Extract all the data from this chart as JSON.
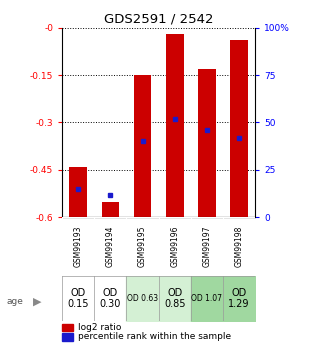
{
  "title": "GDS2591 / 2542",
  "samples": [
    "GSM99193",
    "GSM99194",
    "GSM99195",
    "GSM99196",
    "GSM99197",
    "GSM99198"
  ],
  "log2_ratios": [
    -0.44,
    -0.55,
    -0.15,
    -0.02,
    -0.13,
    -0.04
  ],
  "percentile_ranks_pct": [
    15,
    12,
    40,
    52,
    46,
    42
  ],
  "age_labels": [
    "OD\n0.15",
    "OD\n0.30",
    "OD 0.63",
    "OD\n0.85",
    "OD 1.07",
    "OD\n1.29"
  ],
  "age_fontsize_large": [
    true,
    true,
    false,
    true,
    false,
    true
  ],
  "age_bg_colors": [
    "#ffffff",
    "#ffffff",
    "#d4f0d4",
    "#d4f0d4",
    "#a0d8a0",
    "#a0d8a0"
  ],
  "ylim_left": [
    -0.6,
    0.0
  ],
  "ylim_right": [
    0,
    100
  ],
  "yticks_left": [
    -0.6,
    -0.45,
    -0.3,
    -0.15,
    0.0
  ],
  "ytick_labels_left": [
    "-0.6",
    "-0.45",
    "-0.3",
    "-0.15",
    "-0"
  ],
  "yticks_right": [
    0,
    25,
    50,
    75,
    100
  ],
  "ytick_labels_right": [
    "0",
    "25",
    "50",
    "75",
    "100%"
  ],
  "bar_color": "#cc0000",
  "percentile_color": "#1a1acc",
  "bar_width": 0.55,
  "background_color": "#ffffff",
  "plot_bg_color": "#ffffff",
  "label_bg_color": "#d8d8d8"
}
